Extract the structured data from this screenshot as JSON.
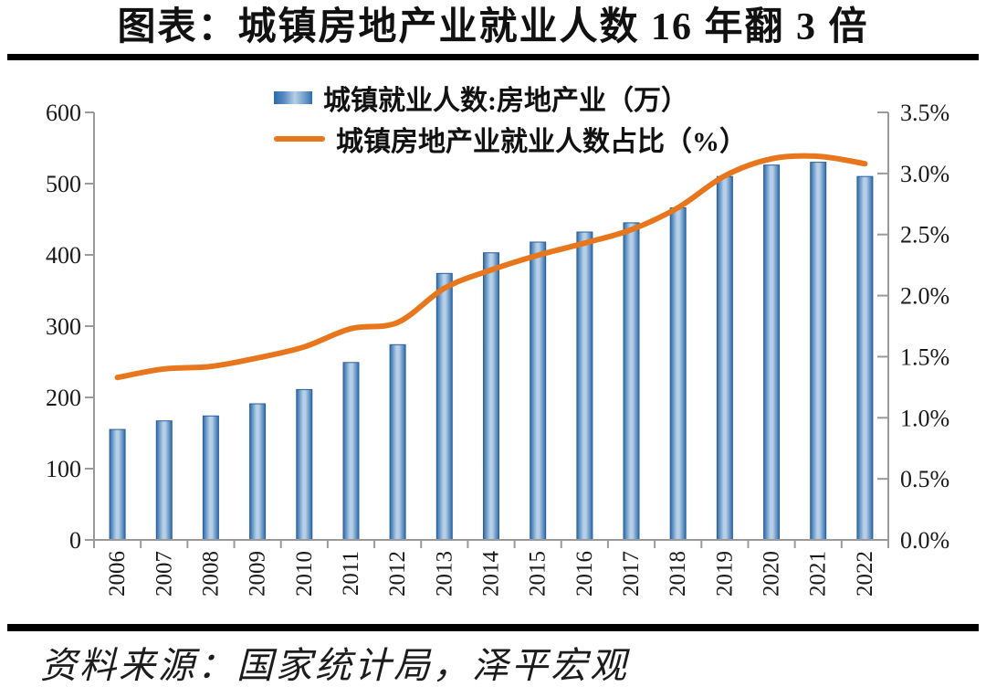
{
  "title": "图表：城镇房地产业就业人数 16 年翻 3 倍",
  "source_note": "资料来源：国家统计局，泽平宏观",
  "colors": {
    "background": "#ffffff",
    "text": "#1a1a1a",
    "divider": "#000000",
    "axis": "#9a9a9a",
    "line_series": "#e8761c",
    "bar_edge": "#2e6aa7",
    "bar_mid": "#5388bf",
    "bar_center": "#b6cfe6",
    "bar_outline": "#2c5f96"
  },
  "chart_data": {
    "type": "bar+line combo",
    "categories": [
      "2006",
      "2007",
      "2008",
      "2009",
      "2010",
      "2011",
      "2012",
      "2013",
      "2014",
      "2015",
      "2016",
      "2017",
      "2018",
      "2019",
      "2020",
      "2021",
      "2022"
    ],
    "series": [
      {
        "name": "城镇就业人数:房地产业（万）",
        "type": "bar",
        "axis": "left",
        "values": [
          155,
          167,
          174,
          191,
          211,
          249,
          274,
          374,
          403,
          418,
          432,
          445,
          466,
          510,
          526,
          530,
          510
        ]
      },
      {
        "name": "城镇房地产业就业人数占比（%）",
        "type": "line",
        "axis": "right",
        "values": [
          1.33,
          1.4,
          1.42,
          1.49,
          1.58,
          1.73,
          1.78,
          2.06,
          2.21,
          2.33,
          2.43,
          2.54,
          2.72,
          2.98,
          3.12,
          3.14,
          3.08
        ]
      }
    ],
    "left_axis": {
      "min": 0,
      "max": 600,
      "step": 100,
      "tick_labels": [
        "600",
        "500",
        "400",
        "300",
        "200",
        "100",
        "0"
      ]
    },
    "right_axis": {
      "min": 0,
      "max": 3.5,
      "step": 0.5,
      "tick_labels": [
        "3.5%",
        "3.0%",
        "2.5%",
        "2.0%",
        "1.5%",
        "1.0%",
        "0.5%",
        "0.0%"
      ]
    },
    "grid": false,
    "legend_position": "top-center",
    "x_tick_rotation": -90
  }
}
